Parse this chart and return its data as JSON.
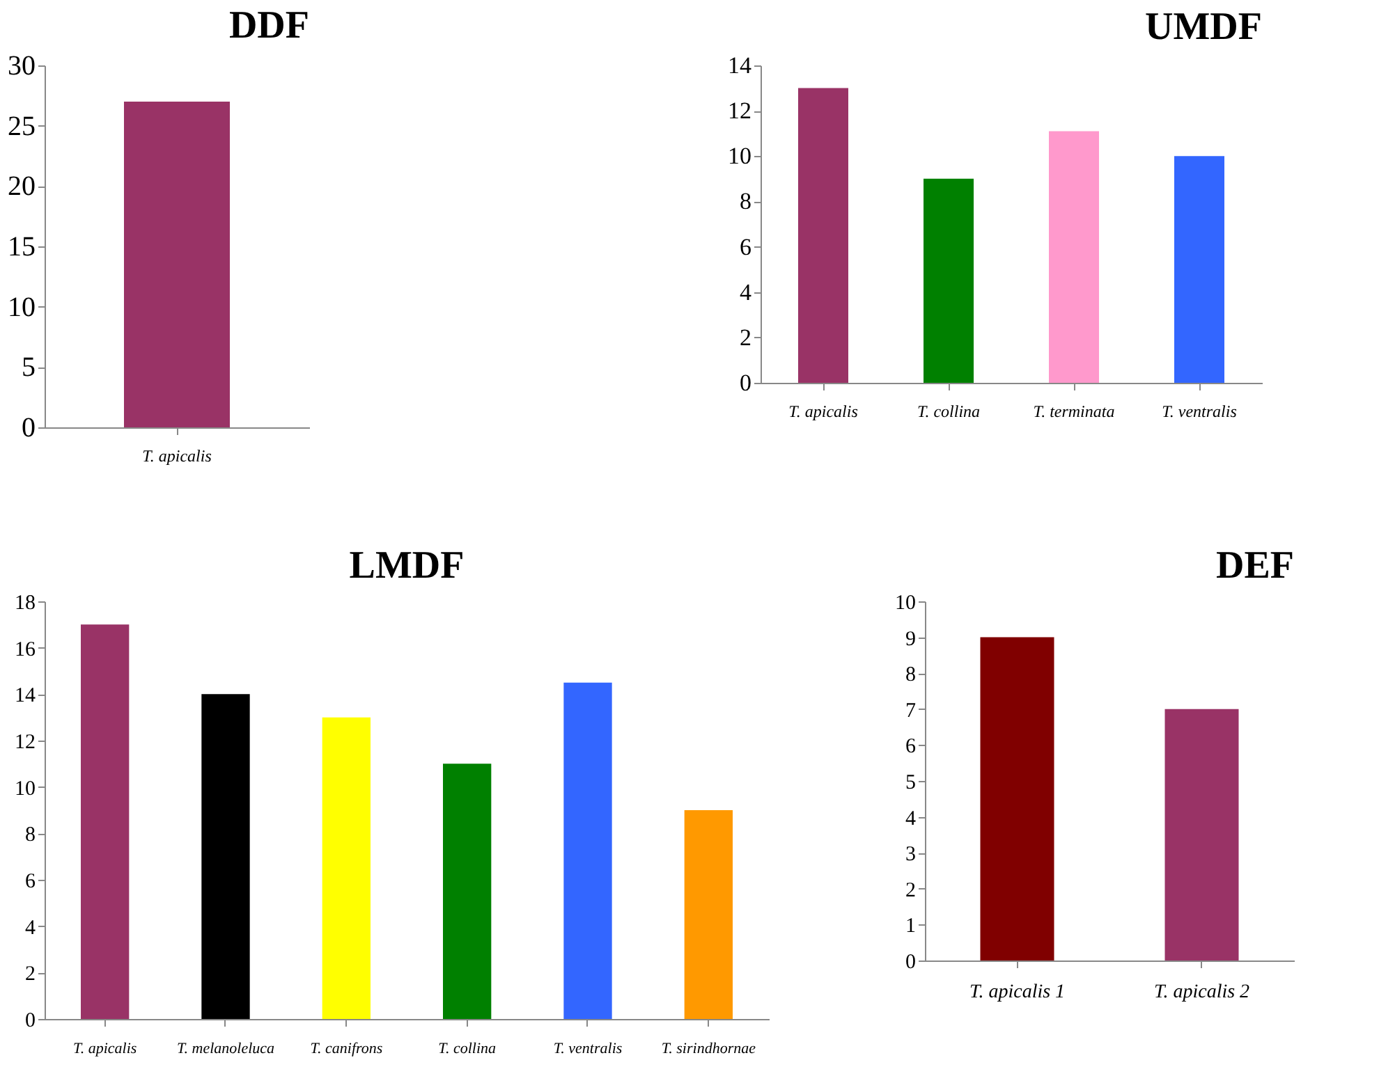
{
  "chart_data": [
    {
      "type": "bar",
      "title": "DDF",
      "categories": [
        "T. apicalis"
      ],
      "values": [
        27
      ],
      "colors": [
        "#993366"
      ],
      "ylim": [
        0,
        30
      ],
      "yticks": [
        0,
        5,
        10,
        15,
        20,
        25,
        30
      ],
      "grid": false,
      "legend": false
    },
    {
      "type": "bar",
      "title": "UMDF",
      "categories": [
        "T. apicalis",
        "T. collina",
        "T. terminata",
        "T. ventralis"
      ],
      "values": [
        13,
        9,
        11.1,
        10
      ],
      "colors": [
        "#993366",
        "#008000",
        "#ff99cc",
        "#3366ff"
      ],
      "ylim": [
        0,
        14
      ],
      "yticks": [
        0,
        2,
        4,
        6,
        8,
        10,
        12,
        14
      ],
      "grid": false,
      "legend": false
    },
    {
      "type": "bar",
      "title": "LMDF",
      "categories": [
        "T.  apicalis",
        "T. melanoleluca",
        "T. canifrons",
        "T. collina",
        "T. ventralis",
        "T. sirindhornae"
      ],
      "values": [
        17,
        14,
        13,
        11,
        14.5,
        9
      ],
      "colors": [
        "#993366",
        "#000000",
        "#ffff00",
        "#008000",
        "#3366ff",
        "#ff9900"
      ],
      "ylim": [
        0,
        18
      ],
      "yticks": [
        0,
        2,
        4,
        6,
        8,
        10,
        12,
        14,
        16,
        18
      ],
      "grid": false,
      "legend": false
    },
    {
      "type": "bar",
      "title": "DEF",
      "categories": [
        "T. apicalis 1",
        "T. apicalis 2"
      ],
      "values": [
        9,
        7
      ],
      "colors": [
        "#800000",
        "#993366"
      ],
      "ylim": [
        0,
        10
      ],
      "yticks": [
        0,
        1,
        2,
        3,
        4,
        5,
        6,
        7,
        8,
        9,
        10
      ],
      "grid": false,
      "legend": false
    }
  ]
}
